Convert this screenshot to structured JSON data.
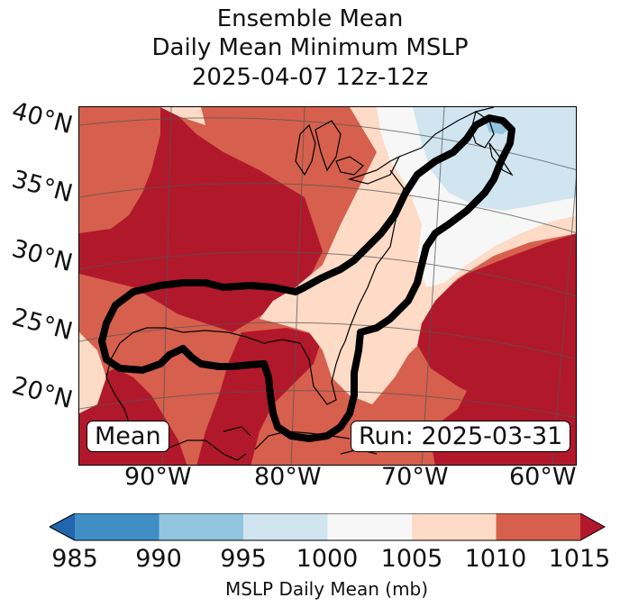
{
  "title": {
    "line1": "Ensemble Mean",
    "line2": "Daily Mean Minimum MSLP",
    "line3": "2025-04-07 12z-12z"
  },
  "map": {
    "region": "Eastern United States, Gulf of Mexico and western Atlantic",
    "lat_labels": [
      "40°N",
      "35°N",
      "30°N",
      "25°N",
      "20°N"
    ],
    "lon_labels": [
      "90°W",
      "80°W",
      "70°W",
      "60°W"
    ],
    "mean_label": "Mean",
    "run_label": "Run: 2025-03-31",
    "outline_color": "#000000"
  },
  "colorbar": {
    "ticks": [
      "985",
      "990",
      "995",
      "1000",
      "1005",
      "1010",
      "1015"
    ],
    "label": "MSLP Daily Mean (mb)",
    "colors": [
      "#2166ac",
      "#3f8fc5",
      "#92c5de",
      "#d1e5f0",
      "#f7f7f7",
      "#fddbc7",
      "#d6604d",
      "#b2182b"
    ]
  }
}
